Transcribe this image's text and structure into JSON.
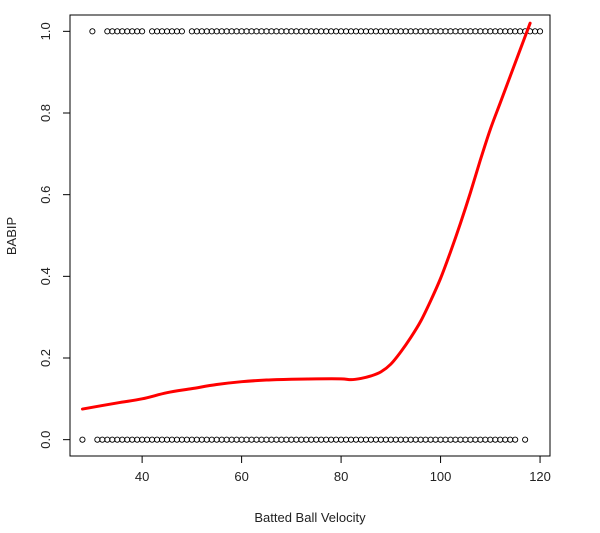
{
  "chart_data": {
    "type": "scatter",
    "title": "",
    "xlabel": "Batted Ball Velocity",
    "ylabel": "BABIP",
    "xlim": [
      25.5,
      122
    ],
    "ylim": [
      -0.04,
      1.04
    ],
    "x_ticks": [
      40,
      60,
      80,
      100,
      120
    ],
    "y_ticks": [
      0.0,
      0.2,
      0.4,
      0.6,
      0.8,
      1.0
    ],
    "x_tick_labels": [
      "40",
      "60",
      "80",
      "100",
      "120"
    ],
    "y_tick_labels": [
      "0.0",
      "0.2",
      "0.4",
      "0.6",
      "0.8",
      "1.0"
    ],
    "grid": false,
    "series": [
      {
        "kind": "points",
        "color": "#000000",
        "marker": "open-circle",
        "x": [
          30,
          33,
          34,
          35,
          36,
          37,
          38,
          39,
          40,
          42,
          43,
          44,
          45,
          46,
          47,
          48,
          50,
          51,
          52,
          53,
          54,
          55,
          56,
          57,
          58,
          59,
          60,
          61,
          62,
          63,
          64,
          65,
          66,
          67,
          68,
          69,
          70,
          71,
          72,
          73,
          74,
          75,
          76,
          77,
          78,
          79,
          80,
          81,
          82,
          83,
          84,
          85,
          86,
          87,
          88,
          89,
          90,
          91,
          92,
          93,
          94,
          95,
          96,
          97,
          98,
          99,
          100,
          101,
          102,
          103,
          104,
          105,
          106,
          107,
          108,
          109,
          110,
          111,
          112,
          113,
          114,
          115,
          116,
          117,
          118,
          119,
          120
        ],
        "y": [
          1,
          1,
          1,
          1,
          1,
          1,
          1,
          1,
          1,
          1,
          1,
          1,
          1,
          1,
          1,
          1,
          1,
          1,
          1,
          1,
          1,
          1,
          1,
          1,
          1,
          1,
          1,
          1,
          1,
          1,
          1,
          1,
          1,
          1,
          1,
          1,
          1,
          1,
          1,
          1,
          1,
          1,
          1,
          1,
          1,
          1,
          1,
          1,
          1,
          1,
          1,
          1,
          1,
          1,
          1,
          1,
          1,
          1,
          1,
          1,
          1,
          1,
          1,
          1,
          1,
          1,
          1,
          1,
          1,
          1,
          1,
          1,
          1,
          1,
          1,
          1,
          1,
          1,
          1,
          1,
          1,
          1,
          1,
          1,
          1,
          1,
          1
        ]
      },
      {
        "kind": "points",
        "color": "#000000",
        "marker": "open-circle",
        "x": [
          28,
          31,
          32,
          33,
          34,
          35,
          36,
          37,
          38,
          39,
          40,
          41,
          42,
          43,
          44,
          45,
          46,
          47,
          48,
          49,
          50,
          51,
          52,
          53,
          54,
          55,
          56,
          57,
          58,
          59,
          60,
          61,
          62,
          63,
          64,
          65,
          66,
          67,
          68,
          69,
          70,
          71,
          72,
          73,
          74,
          75,
          76,
          77,
          78,
          79,
          80,
          81,
          82,
          83,
          84,
          85,
          86,
          87,
          88,
          89,
          90,
          91,
          92,
          93,
          94,
          95,
          96,
          97,
          98,
          99,
          100,
          101,
          102,
          103,
          104,
          105,
          106,
          107,
          108,
          109,
          110,
          111,
          112,
          113,
          114,
          115,
          117
        ],
        "y": [
          0,
          0,
          0,
          0,
          0,
          0,
          0,
          0,
          0,
          0,
          0,
          0,
          0,
          0,
          0,
          0,
          0,
          0,
          0,
          0,
          0,
          0,
          0,
          0,
          0,
          0,
          0,
          0,
          0,
          0,
          0,
          0,
          0,
          0,
          0,
          0,
          0,
          0,
          0,
          0,
          0,
          0,
          0,
          0,
          0,
          0,
          0,
          0,
          0,
          0,
          0,
          0,
          0,
          0,
          0,
          0,
          0,
          0,
          0,
          0,
          0,
          0,
          0,
          0,
          0,
          0,
          0,
          0,
          0,
          0,
          0,
          0,
          0,
          0,
          0,
          0,
          0,
          0,
          0,
          0,
          0,
          0,
          0,
          0,
          0,
          0,
          0
        ]
      },
      {
        "kind": "smooth-line",
        "color": "#ff0000",
        "x": [
          28,
          35,
          40,
          45,
          50,
          55,
          60,
          65,
          70,
          75,
          80,
          82,
          84,
          86,
          88,
          90,
          92,
          94,
          96,
          98,
          100,
          102,
          104,
          106,
          108,
          110,
          112,
          114,
          116,
          118
        ],
        "y": [
          0.075,
          0.09,
          0.1,
          0.115,
          0.125,
          0.135,
          0.142,
          0.146,
          0.148,
          0.149,
          0.149,
          0.147,
          0.15,
          0.156,
          0.166,
          0.185,
          0.215,
          0.25,
          0.29,
          0.34,
          0.395,
          0.46,
          0.53,
          0.605,
          0.685,
          0.76,
          0.825,
          0.89,
          0.955,
          1.02
        ]
      }
    ]
  }
}
